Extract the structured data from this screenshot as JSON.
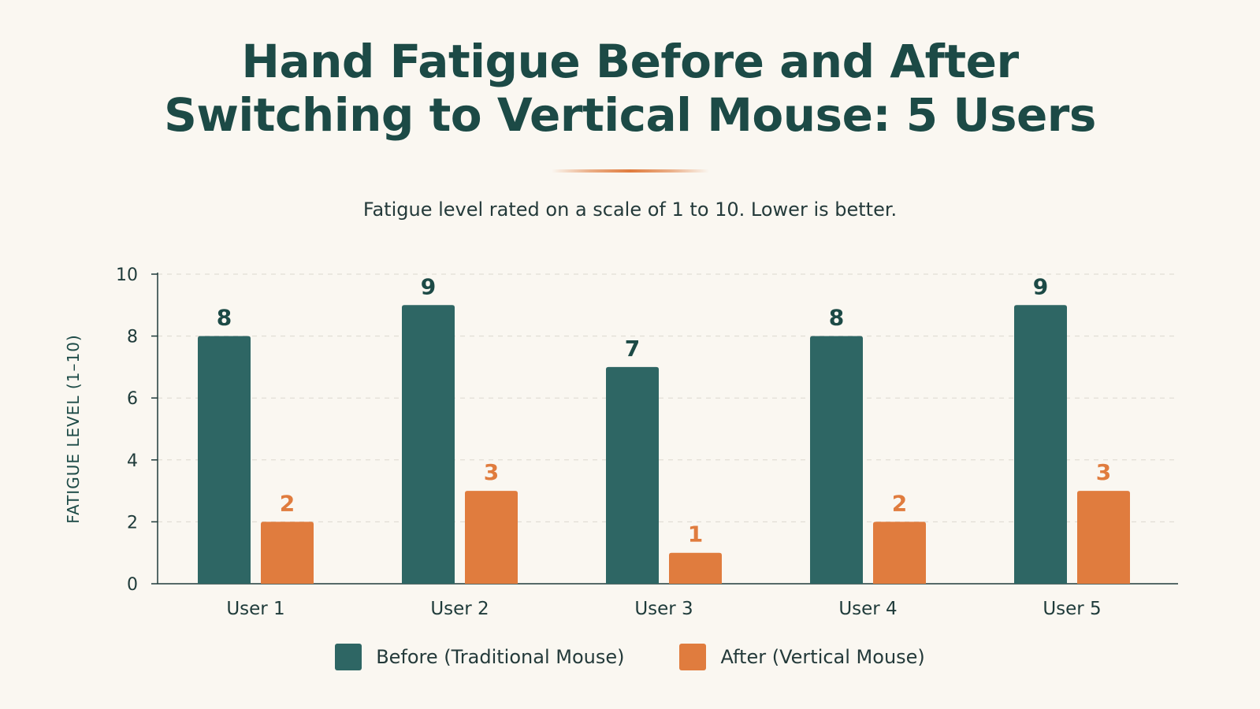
{
  "title_line1": "Hand Fatigue Before and After",
  "title_line2": "Switching to Vertical Mouse: 5 Users",
  "subtitle": "Fatigue level rated on a scale of 1 to 10. Lower is better.",
  "colors": {
    "before": "#2e6664",
    "after": "#e07c3e",
    "title": "#1c4a46",
    "accent": "#e07c3e"
  },
  "chart_data": {
    "type": "bar",
    "categories": [
      "User 1",
      "User 2",
      "User 3",
      "User 4",
      "User 5"
    ],
    "series": [
      {
        "name": "Before (Traditional Mouse)",
        "values": [
          8,
          9,
          7,
          8,
          9
        ]
      },
      {
        "name": "After (Vertical Mouse)",
        "values": [
          2,
          3,
          1,
          2,
          3
        ]
      }
    ],
    "ylabel": "FATIGUE LEVEL (1–10)",
    "xlabel": "",
    "ylim": [
      0,
      10
    ],
    "yticks": [
      0,
      2,
      4,
      6,
      8,
      10
    ],
    "grid": true,
    "legend_position": "bottom"
  }
}
